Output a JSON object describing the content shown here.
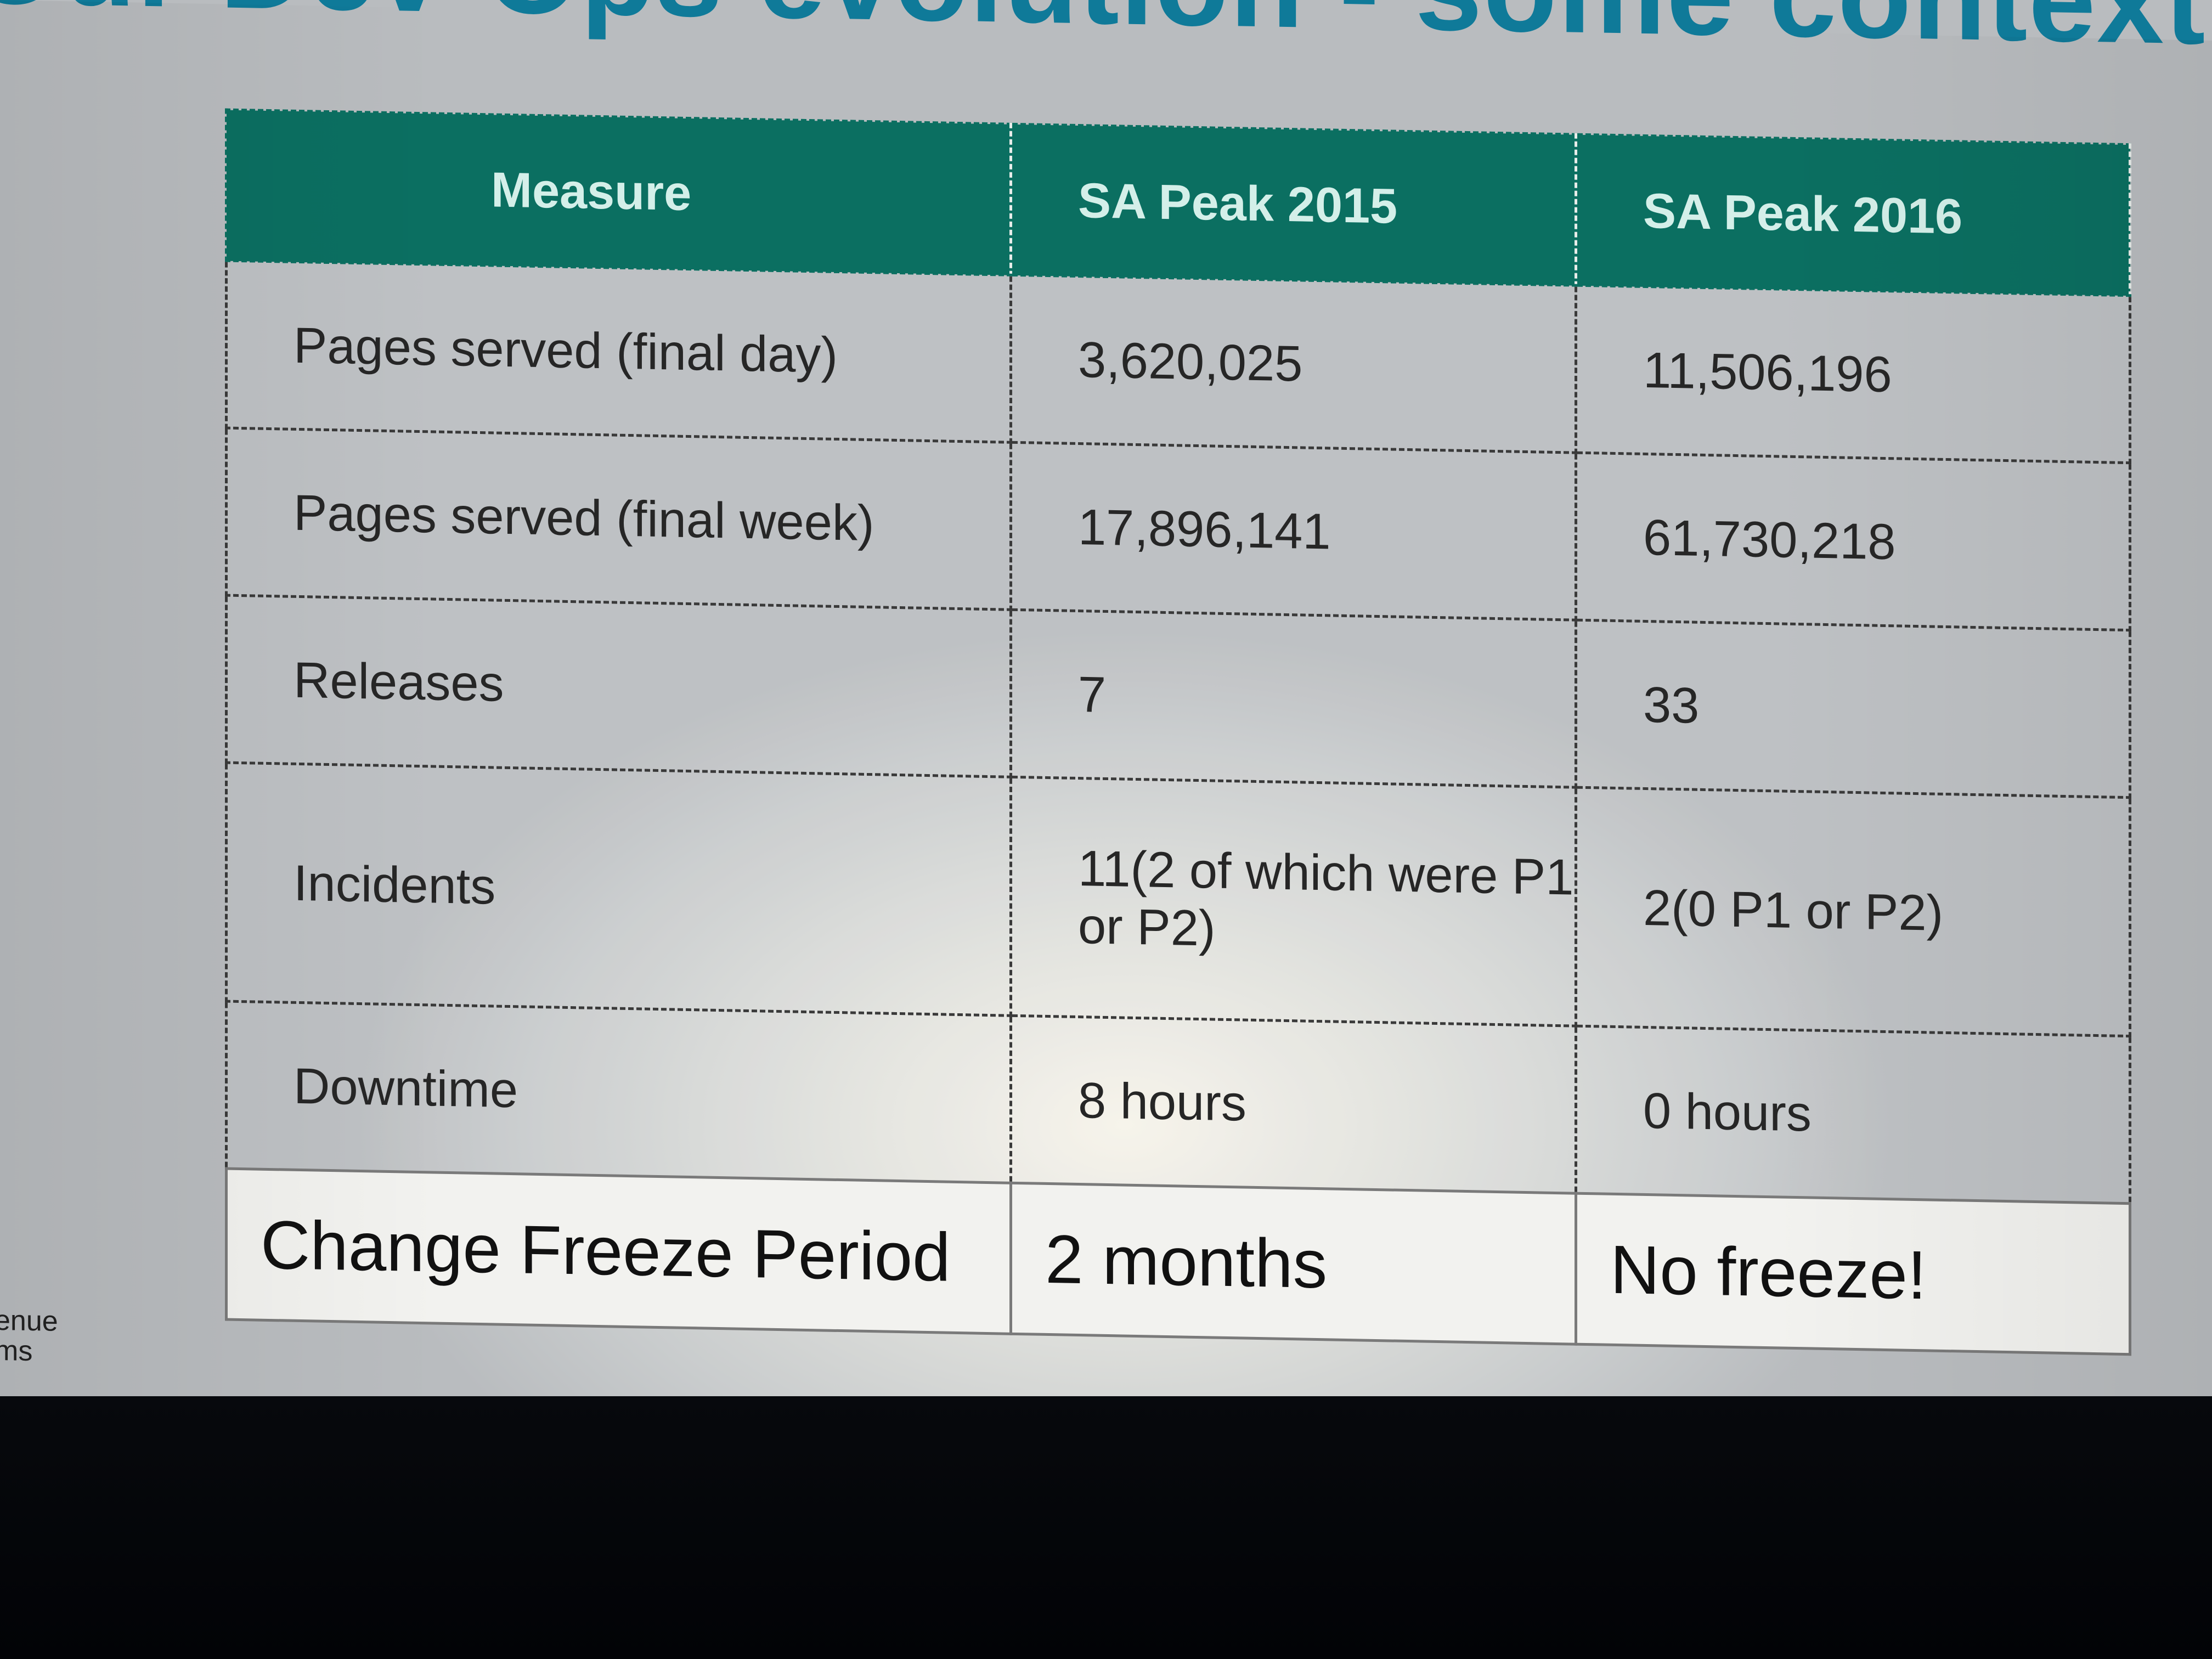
{
  "slide": {
    "title": "Our Dev-Ops evolution - some context",
    "logo_text_line1": "enue",
    "logo_text_line2": "ms"
  },
  "table": {
    "headers": [
      "Measure",
      "SA Peak 2015",
      "SA Peak 2016"
    ],
    "rows": [
      {
        "measure": "Pages served (final day)",
        "peak_2015": "3,620,025",
        "peak_2016": "11,506,196"
      },
      {
        "measure": "Pages served (final week)",
        "peak_2015": "17,896,141",
        "peak_2016": "61,730,218"
      },
      {
        "measure": "Releases",
        "peak_2015": "7",
        "peak_2016": "33"
      },
      {
        "measure": "Incidents",
        "peak_2015": "11(2 of which were P1 or P2)",
        "peak_2016": "2(0 P1 or P2)"
      },
      {
        "measure": "Downtime",
        "peak_2015": "8 hours",
        "peak_2016": "0 hours"
      },
      {
        "measure": "Change Freeze Period",
        "peak_2015": "2 months",
        "peak_2016": "No freeze!"
      }
    ]
  },
  "colors": {
    "title": "#0f7a99",
    "header_bg": "#0b6f61",
    "header_text": "#d4efe9"
  }
}
